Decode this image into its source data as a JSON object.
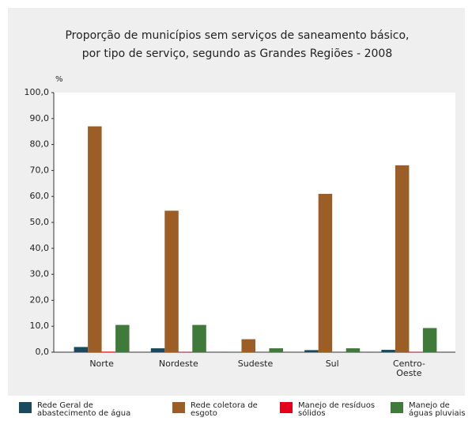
{
  "chart_data": {
    "type": "bar",
    "title": [
      "Proporção de municípios sem serviços de saneamento básico,",
      "por tipo de serviço, segundo as Grandes Regiões - 2008"
    ],
    "y_unit": "%",
    "categories": [
      "Norte",
      "Nordeste",
      "Sudeste",
      "Sul",
      "Centro-Oeste"
    ],
    "series": [
      {
        "name": "Rede Geral de abastecimento de água",
        "color": "#1b4a5e",
        "values": [
          2.0,
          1.5,
          0.1,
          0.8,
          0.9
        ]
      },
      {
        "name": "Rede coletora de esgoto",
        "color": "#9c5e27",
        "values": [
          87.0,
          54.5,
          5.0,
          61.0,
          72.0
        ]
      },
      {
        "name": "Manejo de resíduos sólidos",
        "color": "#e2001a",
        "values": [
          0.2,
          0.1,
          0.0,
          0.0,
          0.1
        ]
      },
      {
        "name": "Manejo de águas pluviais",
        "color": "#3f7a3a",
        "values": [
          10.5,
          10.5,
          1.5,
          1.5,
          9.3
        ]
      }
    ],
    "ylim": [
      0,
      100
    ],
    "yticks": [
      {
        "value": 0,
        "label": "0,0"
      },
      {
        "value": 10,
        "label": "10,0"
      },
      {
        "value": 20,
        "label": "20,0"
      },
      {
        "value": 30,
        "label": "30,0"
      },
      {
        "value": 40,
        "label": "40,0"
      },
      {
        "value": 50,
        "label": "50,0"
      },
      {
        "value": 60,
        "label": "60,0"
      },
      {
        "value": 70,
        "label": "70,0"
      },
      {
        "value": 80,
        "label": "80,0"
      },
      {
        "value": 90,
        "label": "90,0"
      },
      {
        "value": 100,
        "label": "100,0"
      }
    ]
  }
}
